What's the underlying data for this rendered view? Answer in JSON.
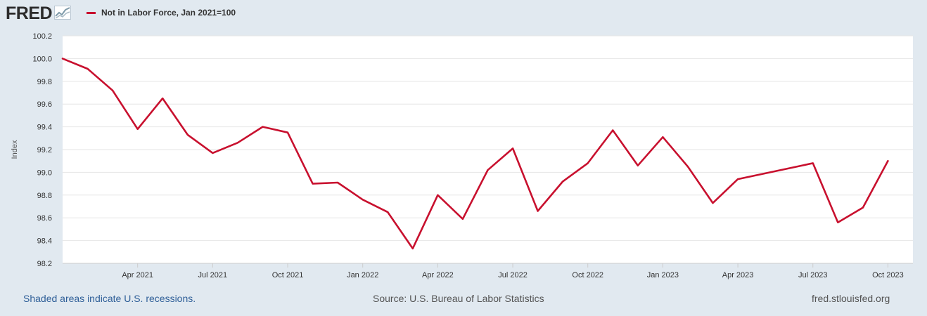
{
  "header": {
    "logo_text": "FRED",
    "legend_label": "Not in Labor Force, Jan 2021=100"
  },
  "footer": {
    "recession_note": "Shaded areas indicate U.S. recessions.",
    "source": "Source: U.S. Bureau of Labor Statistics",
    "site": "fred.stlouisfed.org"
  },
  "colors": {
    "series": "#c8102e",
    "plot_background": "#ffffff",
    "page_background": "#e1e9f0",
    "grid": "#e6e6e6"
  },
  "chart_data": {
    "type": "line",
    "title": "",
    "xlabel": "",
    "ylabel": "Index",
    "ylim": [
      98.2,
      100.2
    ],
    "yticks": [
      98.2,
      98.4,
      98.6,
      98.8,
      99.0,
      99.2,
      99.4,
      99.6,
      99.8,
      100.0,
      100.2
    ],
    "ytick_labels": [
      "98.2",
      "98.4",
      "98.6",
      "98.8",
      "99.0",
      "99.2",
      "99.4",
      "99.6",
      "99.8",
      "100.0",
      "100.2"
    ],
    "xlim": [
      "2021-01",
      "2023-11"
    ],
    "xticks": [
      "2021-04",
      "2021-07",
      "2021-10",
      "2022-01",
      "2022-04",
      "2022-07",
      "2022-10",
      "2023-01",
      "2023-04",
      "2023-07",
      "2023-10"
    ],
    "xtick_labels": [
      "Apr 2021",
      "Jul 2021",
      "Oct 2021",
      "Jan 2022",
      "Apr 2022",
      "Jul 2022",
      "Oct 2022",
      "Jan 2023",
      "Apr 2023",
      "Jul 2023",
      "Oct 2023"
    ],
    "grid": "horizontal",
    "legend": "top-left",
    "series": [
      {
        "name": "Not in Labor Force, Jan 2021=100",
        "x": [
          "2021-01",
          "2021-02",
          "2021-03",
          "2021-04",
          "2021-05",
          "2021-06",
          "2021-07",
          "2021-08",
          "2021-09",
          "2021-10",
          "2021-11",
          "2021-12",
          "2022-01",
          "2022-02",
          "2022-03",
          "2022-04",
          "2022-05",
          "2022-06",
          "2022-07",
          "2022-08",
          "2022-09",
          "2022-10",
          "2022-11",
          "2022-12",
          "2023-01",
          "2023-02",
          "2023-03",
          "2023-04",
          "2023-07",
          "2023-08",
          "2023-09",
          "2023-10"
        ],
        "values": [
          100.0,
          99.91,
          99.72,
          99.38,
          99.65,
          99.33,
          99.17,
          99.26,
          99.4,
          99.35,
          98.9,
          98.91,
          98.76,
          98.65,
          98.33,
          98.8,
          98.59,
          99.02,
          99.21,
          98.66,
          98.92,
          99.08,
          99.37,
          99.06,
          99.31,
          99.05,
          98.73,
          98.94,
          99.08,
          98.56,
          98.69,
          99.1
        ]
      }
    ]
  }
}
